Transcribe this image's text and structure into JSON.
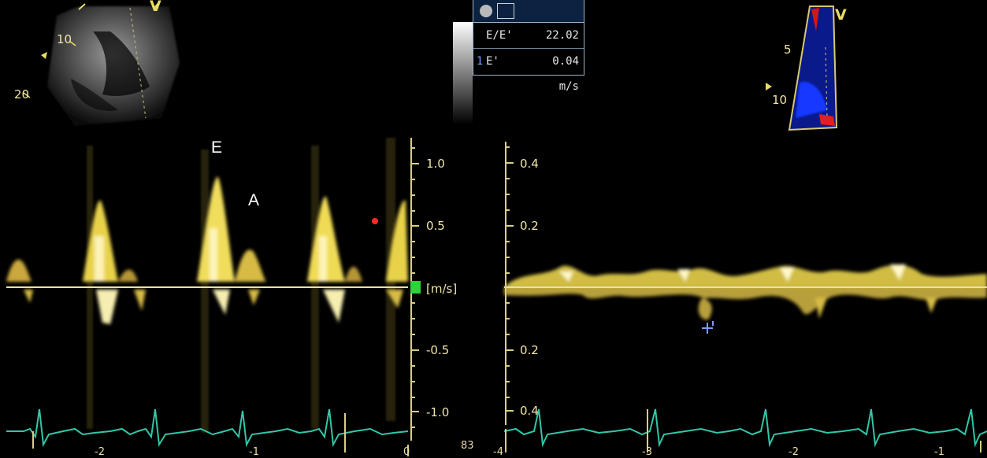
{
  "labels": {
    "e_wave": "E",
    "a_wave": "A"
  },
  "inset_left": {
    "depth_10": "10",
    "depth_20": "20"
  },
  "inset_right": {
    "depth_5": "5",
    "depth_10": "10",
    "marker": "V"
  },
  "left_top_marker": "V",
  "measurements": [
    {
      "index": "",
      "name": "E/E'",
      "value": "22.02"
    },
    {
      "index": "1",
      "name": "E'",
      "value": "0.04 m/s"
    }
  ],
  "left_scale": {
    "ticks": [
      "1.0",
      "0.5",
      "[m/s]",
      "-0.5",
      "-1.0"
    ],
    "time_ticks": [
      "-2",
      "-1",
      "0"
    ],
    "corner_text": "83"
  },
  "right_scale": {
    "ticks": [
      "0.4",
      "0.2",
      "0.2",
      "0.4"
    ],
    "time_ticks": [
      "-4",
      "-3",
      "-2",
      "-1"
    ]
  },
  "colors": {
    "doppler": "#e8d24a",
    "ecg": "#33c6a8",
    "baseline": "#e9e3a8",
    "scale": "#d8cd86",
    "green_marker": "#2fd13c",
    "red_dot": "#ff2a2a",
    "cursor": "#7f9cff"
  }
}
